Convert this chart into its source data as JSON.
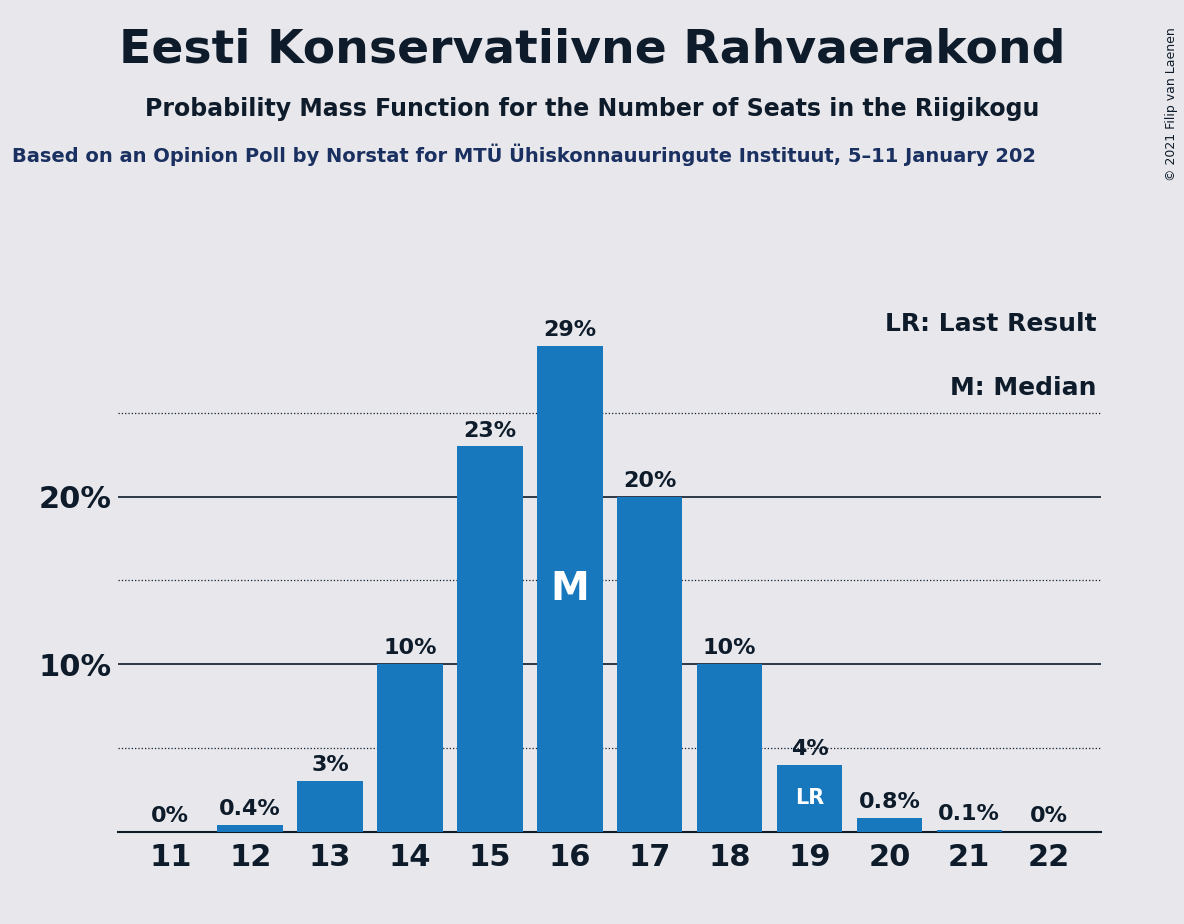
{
  "title": "Eesti Konservatiivne Rahvaerakond",
  "subtitle": "Probability Mass Function for the Number of Seats in the Riigikogu",
  "source_text": "Based on an Opinion Poll by Norstat for MTÜ Ühiskonnauuringute Instituut, 5–11 January 202",
  "copyright_text": "© 2021 Filip van Laenen",
  "seats": [
    11,
    12,
    13,
    14,
    15,
    16,
    17,
    18,
    19,
    20,
    21,
    22
  ],
  "probs": [
    0.0,
    0.4,
    3.0,
    10.0,
    23.0,
    29.0,
    20.0,
    10.0,
    4.0,
    0.8,
    0.1,
    0.0
  ],
  "bar_color": "#1878be",
  "background_color": "#e8e8ec",
  "median_seat": 16,
  "lr_seat": 19,
  "legend_lr": "LR: Last Result",
  "legend_m": "M: Median",
  "solid_grid": [
    10,
    20
  ],
  "dotted_grid": [
    5,
    15,
    25
  ],
  "ylim": [
    0,
    32
  ],
  "title_fontsize": 34,
  "subtitle_fontsize": 17,
  "source_fontsize": 14,
  "bar_label_fontsize": 16,
  "axis_tick_fontsize": 22,
  "legend_fontsize": 18,
  "copyright_fontsize": 9
}
